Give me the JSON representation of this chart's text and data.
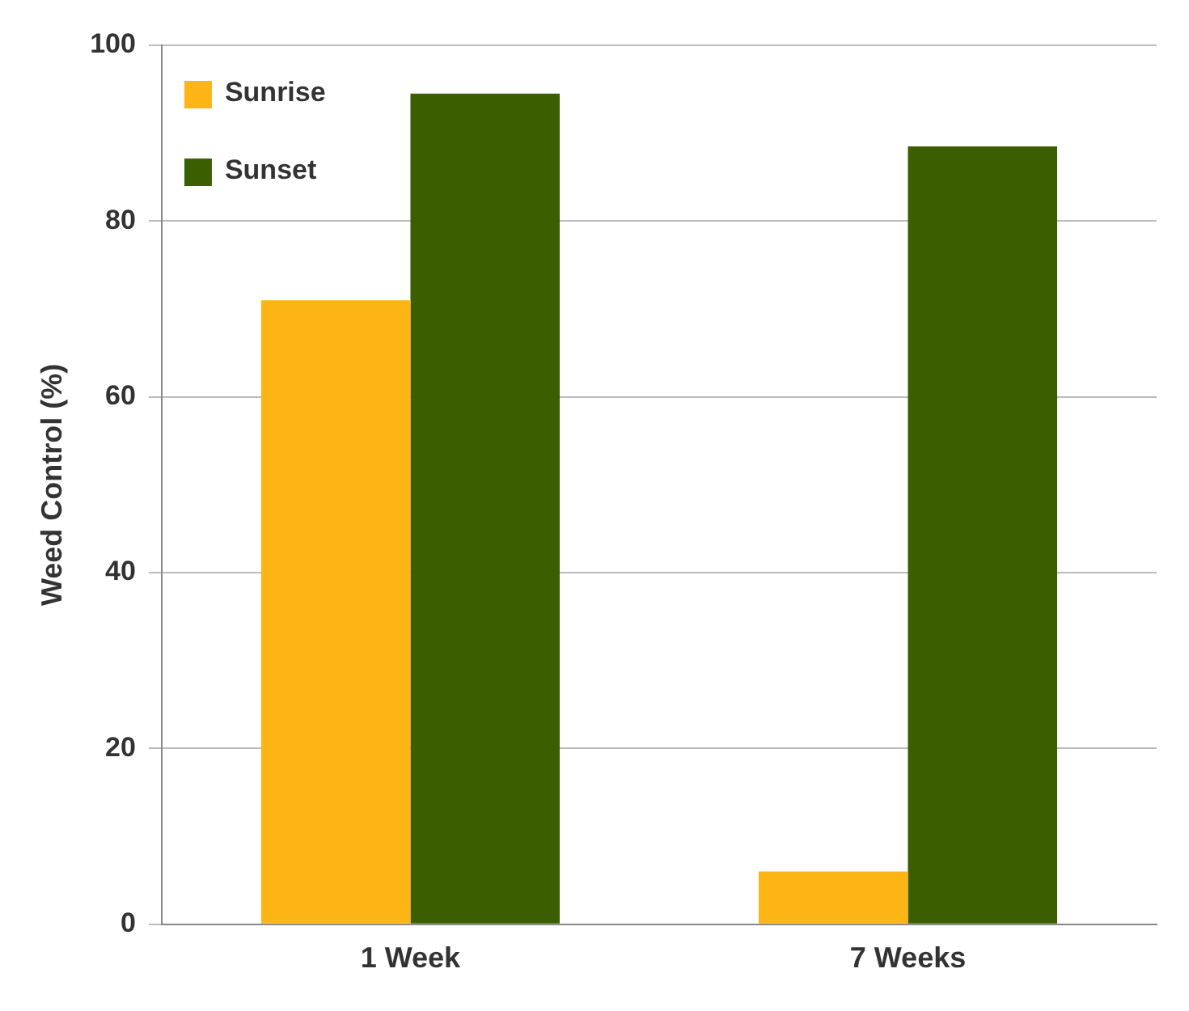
{
  "chart_data": {
    "type": "bar",
    "ylabel": "Weed Control (%)",
    "categories": [
      "1 Week",
      "7 Weeks"
    ],
    "series": [
      {
        "name": "Sunrise",
        "color": "#fdb515",
        "values": [
          71,
          6
        ]
      },
      {
        "name": "Sunset",
        "color": "#3a5e00",
        "values": [
          94.5,
          88.5
        ]
      }
    ],
    "ylim": [
      0,
      100
    ],
    "yticks": [
      0,
      20,
      40,
      60,
      80,
      100
    ],
    "grid": "y",
    "legend": "top left"
  }
}
